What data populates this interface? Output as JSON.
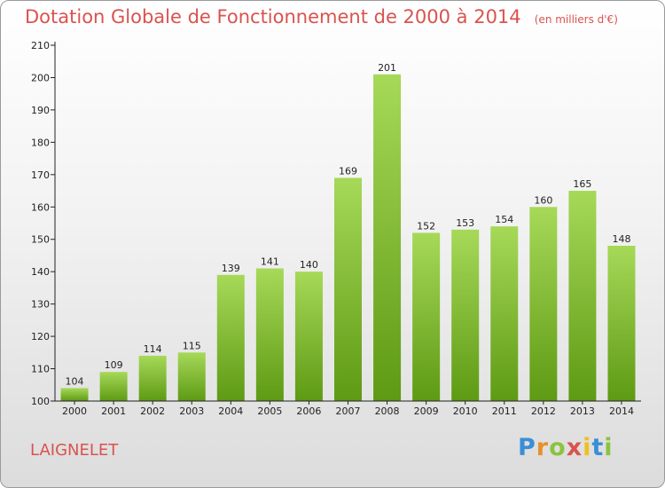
{
  "header": {
    "title": "Dotation Globale de Fonctionnement de 2000 à 2014",
    "subtitle": "(en milliers d'€)"
  },
  "footer": {
    "commune": "LAIGNELET",
    "logo": "Proxiti"
  },
  "colors": {
    "title": "#d9534f",
    "bar_light": "#a6d958",
    "bar_dark": "#5e9a14"
  },
  "chart_data": {
    "type": "bar",
    "categories": [
      "2000",
      "2001",
      "2002",
      "2003",
      "2004",
      "2005",
      "2006",
      "2007",
      "2008",
      "2009",
      "2010",
      "2011",
      "2012",
      "2013",
      "2014"
    ],
    "values": [
      104,
      109,
      114,
      115,
      139,
      141,
      140,
      169,
      201,
      152,
      153,
      154,
      160,
      165,
      148
    ],
    "ylim": [
      100,
      210
    ],
    "yticks": [
      100,
      110,
      120,
      130,
      140,
      150,
      160,
      170,
      180,
      190,
      200,
      210
    ],
    "xlabel": "",
    "ylabel": "",
    "grid": false,
    "legend": "none"
  }
}
